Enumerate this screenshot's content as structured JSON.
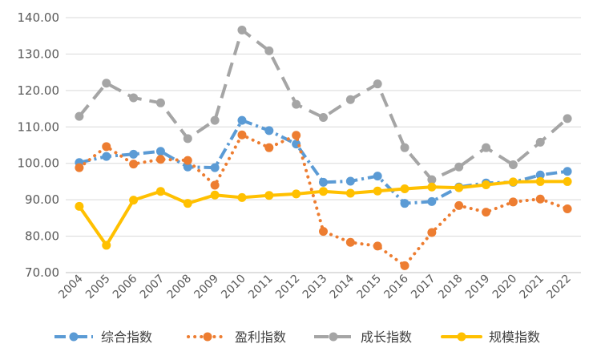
{
  "chart_data": {
    "type": "line",
    "title": "",
    "xlabel": "",
    "ylabel": "",
    "ylim": [
      70,
      140
    ],
    "yticks": [
      "70.00",
      "80.00",
      "90.00",
      "100.00",
      "110.00",
      "120.00",
      "130.00",
      "140.00"
    ],
    "grid": "horizontal",
    "legend_position": "bottom",
    "categories": [
      "2004",
      "2005",
      "2006",
      "2007",
      "2008",
      "2009",
      "2010",
      "2011",
      "2012",
      "2013",
      "2014",
      "2015",
      "2016",
      "2017",
      "2018",
      "2019",
      "2020",
      "2021",
      "2022"
    ],
    "series": [
      {
        "name": "综合指数",
        "color": "#5B9BD5",
        "dash": "dash-dot",
        "values": [
          100.2,
          101.9,
          102.5,
          103.3,
          99.0,
          98.8,
          111.8,
          109.0,
          105.3,
          94.8,
          95.1,
          96.5,
          89.0,
          89.5,
          93.5,
          94.6,
          94.8,
          96.8,
          97.8
        ]
      },
      {
        "name": "盈利指数",
        "color": "#ED7D31",
        "dash": "dotted",
        "values": [
          98.8,
          104.6,
          99.8,
          101.1,
          100.8,
          94.0,
          107.8,
          104.3,
          107.7,
          81.3,
          78.3,
          77.3,
          71.9,
          81.0,
          88.4,
          86.6,
          89.4,
          90.2,
          87.5
        ]
      },
      {
        "name": "成长指数",
        "color": "#A5A5A5",
        "dash": "dashed",
        "values": [
          112.9,
          122.0,
          118.0,
          116.6,
          106.8,
          111.8,
          136.6,
          130.9,
          116.2,
          112.6,
          117.5,
          121.8,
          104.3,
          95.5,
          99.0,
          104.3,
          99.6,
          105.8,
          112.3
        ]
      },
      {
        "name": "规模指数",
        "color": "#FFC000",
        "dash": "solid",
        "values": [
          88.2,
          77.5,
          89.9,
          92.3,
          89.0,
          91.3,
          90.6,
          91.2,
          91.6,
          92.3,
          91.8,
          92.4,
          93.0,
          93.5,
          93.3,
          94.1,
          94.9,
          95.0,
          95.0
        ]
      }
    ]
  }
}
